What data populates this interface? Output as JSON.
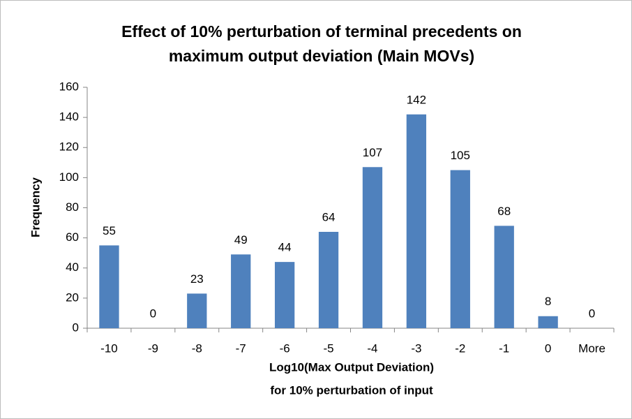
{
  "chart_data": {
    "type": "bar",
    "title": [
      "Effect of 10% perturbation of terminal precedents on",
      "maximum output deviation (Main MOVs)"
    ],
    "x_label": [
      "Log10(Max Output Deviation)",
      "for 10% perturbation  of input"
    ],
    "y_label": "Frequency",
    "categories": [
      "-10",
      "-9",
      "-8",
      "-7",
      "-6",
      "-5",
      "-4",
      "-3",
      "-2",
      "-1",
      "0",
      "More"
    ],
    "values": [
      55,
      0,
      23,
      49,
      44,
      64,
      107,
      142,
      105,
      68,
      8,
      0
    ],
    "color": "#4f81bd",
    "ylim": [
      0,
      160
    ],
    "yticks": [
      0,
      20,
      40,
      60,
      80,
      100,
      120,
      140,
      160
    ],
    "grid": false,
    "data_labels": true
  }
}
